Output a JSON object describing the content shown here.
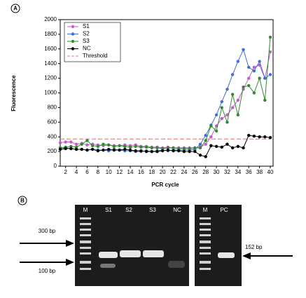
{
  "chart_data": {
    "type": "line",
    "panel": "A",
    "x_label": "PCR cycle",
    "y_label": "Fluorescence",
    "x": [
      1,
      2,
      3,
      4,
      5,
      6,
      7,
      8,
      9,
      10,
      11,
      12,
      13,
      14,
      15,
      16,
      17,
      18,
      19,
      20,
      21,
      22,
      23,
      24,
      25,
      26,
      27,
      28,
      29,
      30,
      31,
      32,
      33,
      34,
      35,
      36,
      37,
      38,
      39,
      40
    ],
    "xlim": [
      1,
      40
    ],
    "xticks": [
      2,
      4,
      6,
      8,
      10,
      12,
      14,
      16,
      18,
      20,
      22,
      24,
      26,
      28,
      30,
      32,
      34,
      36,
      38,
      40
    ],
    "ylim": [
      0,
      2000
    ],
    "yticks": [
      0,
      200,
      400,
      600,
      800,
      1000,
      1200,
      1400,
      1600,
      1800,
      2000
    ],
    "grid": false,
    "legend": "top-left",
    "series": [
      {
        "name": "S1",
        "color": "#c45ccc",
        "values": [
          320,
          330,
          330,
          300,
          310,
          290,
          300,
          290,
          280,
          290,
          280,
          280,
          290,
          280,
          290,
          270,
          270,
          260,
          260,
          250,
          260,
          250,
          250,
          250,
          250,
          250,
          260,
          300,
          400,
          550,
          650,
          700,
          800,
          900,
          1050,
          1200,
          1350,
          1380,
          1200,
          1560
        ]
      },
      {
        "name": "S2",
        "color": "#3f6fd6",
        "values": [
          250,
          250,
          240,
          230,
          230,
          220,
          230,
          220,
          220,
          210,
          230,
          220,
          210,
          210,
          200,
          200,
          210,
          200,
          210,
          220,
          210,
          220,
          220,
          220,
          220,
          230,
          300,
          420,
          560,
          700,
          880,
          1050,
          1250,
          1430,
          1590,
          1350,
          1300,
          1430,
          1200,
          1250
        ]
      },
      {
        "name": "S3",
        "color": "#2e8b2e",
        "values": [
          250,
          260,
          270,
          260,
          300,
          350,
          280,
          270,
          300,
          290,
          270,
          280,
          270,
          260,
          270,
          260,
          260,
          250,
          250,
          240,
          250,
          250,
          240,
          240,
          240,
          250,
          250,
          350,
          550,
          480,
          800,
          600,
          980,
          700,
          1080,
          1100,
          1000,
          1200,
          900,
          1760
        ]
      },
      {
        "name": "NC",
        "color": "#000000",
        "values": [
          230,
          240,
          240,
          230,
          230,
          220,
          230,
          210,
          220,
          230,
          220,
          220,
          230,
          220,
          210,
          210,
          200,
          200,
          200,
          210,
          220,
          210,
          210,
          200,
          200,
          200,
          150,
          130,
          280,
          270,
          260,
          300,
          250,
          270,
          250,
          420,
          410,
          400,
          400,
          390
        ]
      }
    ],
    "threshold": {
      "name": "Threshold",
      "value": 370,
      "color": "#e08080"
    }
  },
  "gel": {
    "panel": "B",
    "lanes": [
      "M",
      "S1",
      "S2",
      "S3",
      "NC"
    ],
    "lanes2": [
      "M",
      "PC"
    ],
    "markers": [
      "300 bp",
      "100 bp"
    ],
    "product": "152 bp"
  }
}
